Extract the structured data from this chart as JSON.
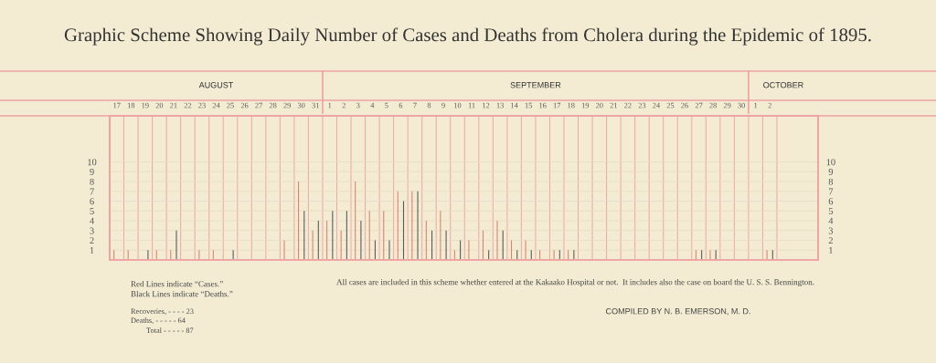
{
  "chart_data": {
    "type": "bar",
    "title": "Graphic Scheme Showing Daily Number of Cases and Deaths from Cholera during the Epidemic of 1895.",
    "categories": [
      "17",
      "18",
      "19",
      "20",
      "21",
      "22",
      "23",
      "24",
      "25",
      "26",
      "27",
      "28",
      "29",
      "30",
      "31",
      "1",
      "2",
      "3",
      "4",
      "5",
      "6",
      "7",
      "8",
      "9",
      "10",
      "11",
      "12",
      "13",
      "14",
      "15",
      "16",
      "17",
      "18",
      "19",
      "20",
      "21",
      "22",
      "23",
      "24",
      "25",
      "26",
      "27",
      "28",
      "29",
      "30",
      "1",
      "2"
    ],
    "series": [
      {
        "color": "#d9846f",
        "values": [
          1,
          1,
          null,
          1,
          1,
          null,
          1,
          1,
          null,
          null,
          null,
          null,
          2,
          8,
          3,
          4,
          3,
          8,
          5,
          5,
          7,
          7,
          4,
          5,
          1,
          2,
          3,
          4,
          2,
          2,
          1,
          1,
          1,
          null,
          null,
          null,
          null,
          null,
          null,
          null,
          null,
          1,
          1,
          null,
          null,
          null,
          1
        ]
      },
      {
        "color": "#5a5a5a",
        "values": [
          null,
          null,
          1,
          null,
          3,
          null,
          null,
          null,
          1,
          null,
          null,
          null,
          null,
          5,
          4,
          5,
          5,
          4,
          2,
          2,
          6,
          7,
          3,
          3,
          2,
          null,
          1,
          3,
          1,
          1,
          null,
          1,
          1,
          null,
          null,
          null,
          null,
          null,
          null,
          null,
          null,
          1,
          1,
          null,
          null,
          null,
          1
        ]
      }
    ],
    "ylim": [
      0,
      14.7
    ],
    "yticks": [
      1,
      2,
      3,
      4,
      5,
      6,
      7,
      8,
      9,
      10
    ],
    "y2lim": [
      0,
      14.7
    ],
    "y2ticks": [
      1,
      2,
      3,
      4,
      5,
      6,
      7,
      8,
      9,
      10
    ],
    "grid": true,
    "legend": false,
    "annotations": [
      "AUGUST",
      "SEPTEMBER",
      "OCTOBER",
      "Red Lines indicate “Cases.”",
      "Black Lines indicate “Deaths.”",
      "Recoveries, - - - - 23",
      "Deaths, - - - - - 64",
      "Total - - - - - 87",
      "All cases are included in this scheme whether entered at the Kakaako Hospital or not.  It includes also the case on board the U. S. S. Bennington.",
      "COMPILED BY N. B. EMERSON, M. D."
    ]
  }
}
